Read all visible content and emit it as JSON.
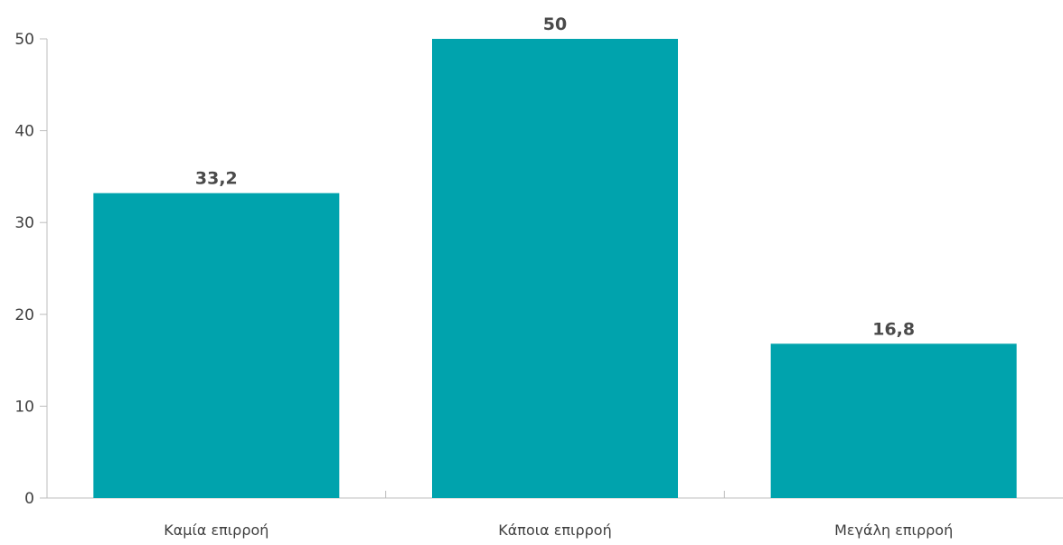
{
  "chart_data": {
    "type": "bar",
    "categories": [
      "Καμία επιρροή",
      "Κάποια επιρροή",
      "Μεγάλη επιρροή"
    ],
    "values": [
      33.2,
      50,
      16.8
    ],
    "value_labels": [
      "33,2",
      "50",
      "16,8"
    ],
    "title": "",
    "xlabel": "",
    "ylabel": "",
    "ylim": [
      0,
      50
    ],
    "yticks": [
      0,
      10,
      20,
      30,
      40,
      50
    ],
    "grid": false,
    "legend": "none",
    "bar_color": "#00A3AD",
    "axis_color": "#bdbdbd",
    "label_color": "#4a4a4a"
  }
}
